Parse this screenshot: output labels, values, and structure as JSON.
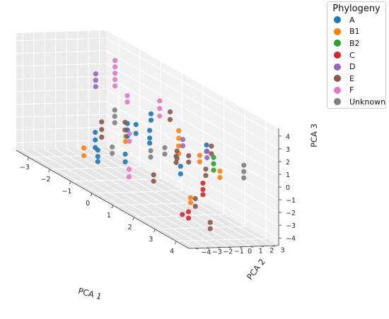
{
  "chart_data": {
    "type": "scatter",
    "projection": "3d",
    "xlabel": "PCA 1",
    "ylabel": "PCA 2",
    "zlabel": "PCA 3",
    "xticks": [
      -3,
      -2,
      -1,
      0,
      1,
      2,
      3,
      4
    ],
    "yticks": [
      -4,
      -3,
      -2,
      -1,
      0,
      1,
      2,
      3
    ],
    "zticks": [
      -4,
      -3,
      -2,
      -1,
      0,
      1,
      2,
      3,
      4
    ],
    "xlim": [
      -3.6,
      4.6
    ],
    "ylim": [
      -4.6,
      3.6
    ],
    "zlim": [
      -4.6,
      4.6
    ],
    "grid": true,
    "legend": {
      "title": "Phylogeny",
      "placement": "outside top-right"
    },
    "series": [
      {
        "name": "A",
        "color": "#1f77b4",
        "points": [
          [
            -0.3,
            -0.8,
            0.5
          ],
          [
            -0.3,
            -0.8,
            0.0
          ],
          [
            -0.3,
            -0.8,
            -0.5
          ],
          [
            0.5,
            -0.3,
            0.7
          ],
          [
            0.5,
            -0.3,
            0.1
          ],
          [
            0.5,
            -0.3,
            -0.3
          ],
          [
            -1.2,
            -2.0,
            -1.0
          ],
          [
            -1.2,
            -2.0,
            -1.6
          ],
          [
            -1.2,
            -2.0,
            -2.2
          ],
          [
            -1.6,
            -1.0,
            -2.8
          ],
          [
            -1.6,
            -1.0,
            -3.3
          ],
          [
            -1.6,
            -1.0,
            -3.7
          ],
          [
            0.2,
            0.4,
            1.7
          ],
          [
            0.2,
            0.4,
            1.2
          ],
          [
            -0.4,
            -0.8,
            -2.0
          ],
          [
            -0.4,
            -0.8,
            -2.6
          ],
          [
            1.5,
            0.6,
            -1.2
          ],
          [
            1.5,
            0.6,
            -1.8
          ],
          [
            1.9,
            2.2,
            0.8
          ],
          [
            1.9,
            2.2,
            0.3
          ],
          [
            -0.1,
            -0.4,
            0.6
          ],
          [
            -0.1,
            -0.4,
            -0.1
          ]
        ]
      },
      {
        "name": "B1",
        "color": "#ff7f0e",
        "points": [
          [
            1.1,
            1.2,
            1.2
          ],
          [
            1.1,
            1.2,
            0.6
          ],
          [
            1.1,
            1.2,
            0.0
          ],
          [
            1.1,
            1.2,
            -0.6
          ],
          [
            2.2,
            1.0,
            0.3
          ],
          [
            2.2,
            1.0,
            -0.2
          ],
          [
            2.9,
            1.5,
            -0.3
          ],
          [
            2.9,
            1.5,
            -0.8
          ],
          [
            -2.0,
            -1.5,
            -3.0
          ],
          [
            -2.0,
            -1.5,
            -3.6
          ],
          [
            -0.8,
            0.0,
            -1.0
          ],
          [
            -0.8,
            0.0,
            -1.4
          ],
          [
            2.6,
            -0.6,
            -2.6
          ],
          [
            2.6,
            -0.6,
            -3.0
          ]
        ]
      },
      {
        "name": "B2",
        "color": "#2ca02c",
        "points": [
          [
            2.6,
            1.5,
            0.5
          ],
          [
            2.6,
            1.5,
            0.0
          ],
          [
            2.6,
            1.5,
            -0.5
          ]
        ]
      },
      {
        "name": "C",
        "color": "#d62728",
        "points": [
          [
            3.5,
            -1.2,
            -0.6
          ],
          [
            3.5,
            -1.2,
            -1.1
          ],
          [
            3.5,
            -1.2,
            -1.5
          ],
          [
            2.5,
            -0.6,
            -3.8
          ],
          [
            2.5,
            -0.6,
            -4.3
          ],
          [
            2.0,
            -0.2,
            -4.5
          ]
        ]
      },
      {
        "name": "D",
        "color": "#9467bd",
        "points": [
          [
            -3.0,
            1.5,
            1.8
          ],
          [
            -3.0,
            1.5,
            1.3
          ],
          [
            -3.0,
            1.5,
            0.8
          ],
          [
            1.4,
            1.0,
            0.8
          ],
          [
            1.4,
            1.0,
            0.3
          ],
          [
            2.6,
            0.9,
            1.0
          ],
          [
            2.6,
            0.9,
            0.5
          ]
        ]
      },
      {
        "name": "E",
        "color": "#8c564b",
        "points": [
          [
            -1.0,
            -1.8,
            0.0
          ],
          [
            -1.0,
            -1.8,
            -0.6
          ],
          [
            -1.0,
            -1.8,
            -1.2
          ],
          [
            -0.2,
            -1.2,
            0.7
          ],
          [
            -0.2,
            -1.2,
            0.1
          ],
          [
            0.9,
            0.8,
            2.5
          ],
          [
            0.9,
            0.8,
            1.9
          ],
          [
            1.5,
            0.2,
            -0.4
          ],
          [
            1.5,
            0.2,
            -0.9
          ],
          [
            2.6,
            1.3,
            1.4
          ],
          [
            2.6,
            1.3,
            0.8
          ],
          [
            1.9,
            -0.5,
            0.4
          ],
          [
            1.9,
            -0.5,
            -0.2
          ],
          [
            2.8,
            0.4,
            -0.2
          ],
          [
            2.8,
            0.4,
            -0.7
          ],
          [
            1.0,
            -0.9,
            -2.3
          ],
          [
            1.0,
            -0.9,
            -2.8
          ],
          [
            3.4,
            -1.7,
            -1.9
          ],
          [
            3.4,
            -1.7,
            -2.5
          ],
          [
            2.3,
            -0.2,
            0.4
          ],
          [
            2.3,
            -0.2,
            -0.1
          ],
          [
            4.0,
            -1.5,
            -3.2
          ],
          [
            4.0,
            -1.5,
            -3.7
          ]
        ]
      },
      {
        "name": "F",
        "color": "#e377c2",
        "points": [
          [
            -2.5,
            2.3,
            3.3
          ],
          [
            -2.5,
            2.3,
            2.8
          ],
          [
            -2.5,
            2.3,
            2.3
          ],
          [
            -2.5,
            2.3,
            1.8
          ],
          [
            -2.5,
            2.3,
            1.3
          ],
          [
            -1.5,
            1.5,
            1.5
          ],
          [
            -1.5,
            1.5,
            1.0
          ],
          [
            0.3,
            1.0,
            2.8
          ],
          [
            0.3,
            1.0,
            2.2
          ],
          [
            0.3,
            1.0,
            1.6
          ],
          [
            -0.2,
            -0.8,
            -0.2
          ],
          [
            -0.2,
            -0.8,
            -0.8
          ],
          [
            0.2,
            -1.6,
            -2.6
          ],
          [
            0.2,
            -1.6,
            -3.2
          ]
        ]
      },
      {
        "name": "Unknown",
        "color": "#7f7f7f",
        "points": [
          [
            4.4,
            0.8,
            1.6
          ],
          [
            4.4,
            0.8,
            1.1
          ],
          [
            4.4,
            0.8,
            0.6
          ],
          [
            -0.9,
            -0.8,
            1.0
          ],
          [
            -0.9,
            -0.8,
            0.5
          ],
          [
            -0.9,
            -0.8,
            0.0
          ],
          [
            0.5,
            -0.2,
            -0.9
          ],
          [
            0.5,
            -0.2,
            -1.4
          ],
          [
            0.7,
            0.7,
            -0.5
          ],
          [
            0.7,
            0.7,
            -1.0
          ],
          [
            -0.6,
            -1.6,
            -1.6
          ],
          [
            -0.6,
            -1.6,
            -2.1
          ]
        ]
      }
    ]
  }
}
